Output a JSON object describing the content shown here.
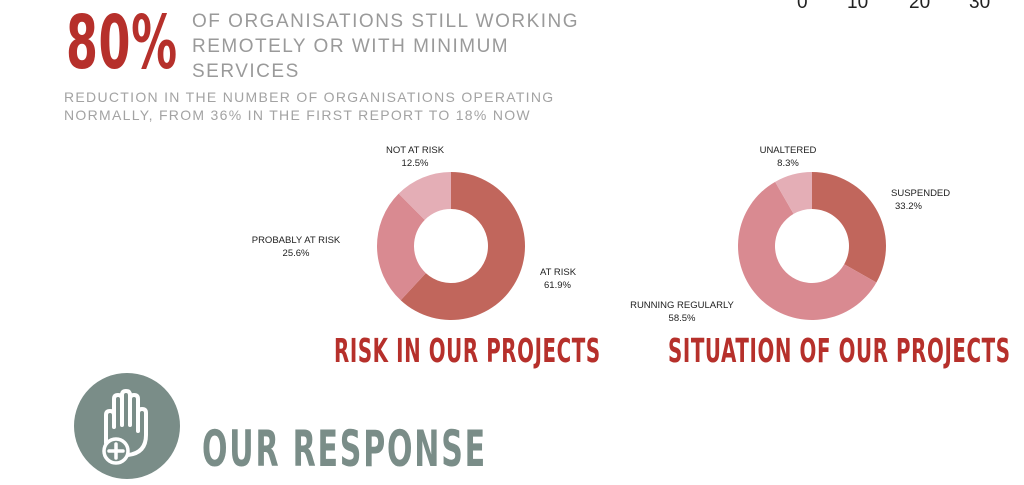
{
  "stat": {
    "big_number": "80%",
    "description": "OF ORGANISATIONS STILL WORKING REMOTELY OR WITH MINIMUM SERVICES",
    "subtext": "REDUCTION IN THE NUMBER OF ORGANISATIONS OPERATING NORMALLY, FROM 36% IN THE FIRST REPORT TO 18% NOW"
  },
  "axis_ticks": [
    "0",
    "10",
    "20",
    "30"
  ],
  "colors": {
    "accent_red": "#b6302b",
    "slice_dark": "#c1665c",
    "slice_mid": "#d98a91",
    "slice_light": "#e4aeb6",
    "icon_bg": "#7a8d88"
  },
  "chart_data": [
    {
      "type": "pie",
      "title": "RISK IN OUR PROJECTS",
      "slices": [
        {
          "label": "AT RISK",
          "value": 61.9,
          "display": "61.9%",
          "color": "#c1665c"
        },
        {
          "label": "PROBABLY AT RISK",
          "value": 25.6,
          "display": "25.6%",
          "color": "#d98a91"
        },
        {
          "label": "NOT AT RISK",
          "value": 12.5,
          "display": "12.5%",
          "color": "#e4aeb6"
        }
      ]
    },
    {
      "type": "pie",
      "title": "SITUATION OF OUR PROJECTS",
      "slices": [
        {
          "label": "SUSPENDED",
          "value": 33.2,
          "display": "33.2%",
          "color": "#c1665c"
        },
        {
          "label": "RUNNING REGULARLY",
          "value": 58.5,
          "display": "58.5%",
          "color": "#d98a91"
        },
        {
          "label": "UNALTERED",
          "value": 8.3,
          "display": "8.3%",
          "color": "#e4aeb6"
        }
      ]
    }
  ],
  "response": {
    "icon": "hand-plus-icon",
    "heading": "OUR RESPONSE"
  }
}
